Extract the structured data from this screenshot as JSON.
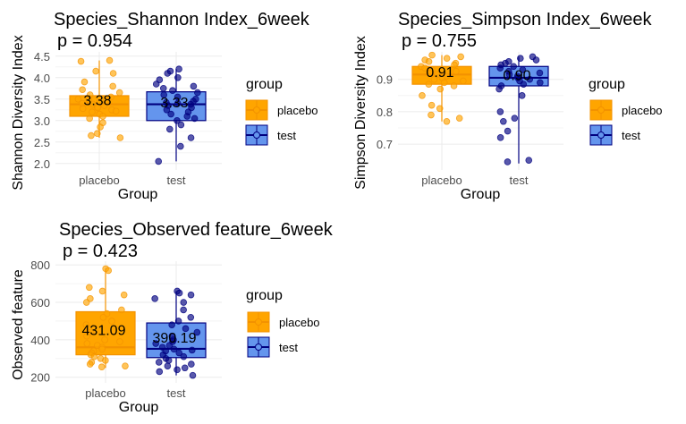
{
  "colors": {
    "placebo_fill": "#FFA500",
    "placebo_edge": "#F39200",
    "test_fill": "#6495ED",
    "test_edge": "#000080",
    "grid": "#ebebeb"
  },
  "legend": {
    "title": "group",
    "items": [
      "placebo",
      "test"
    ]
  },
  "chart_data": [
    {
      "type": "boxplot",
      "title": "Species_Shannon Index_6week",
      "subtitle": "p = 0.954",
      "xlabel": "Group",
      "ylabel": "Shannon Diversity Index",
      "categories": [
        "placebo",
        "test"
      ],
      "yticks": [
        2.0,
        2.5,
        3.0,
        3.5,
        4.0,
        4.5
      ],
      "ytick_labels": [
        "2.0",
        "2.5",
        "3.0",
        "3.5",
        "4.0",
        "4.5"
      ],
      "ylim": [
        1.85,
        4.6
      ],
      "boxes": [
        {
          "group": "placebo",
          "min": 2.6,
          "q1": 3.1,
          "median": 3.38,
          "q3": 3.58,
          "max": 4.4
        },
        {
          "group": "test",
          "min": 2.05,
          "q1": 3.0,
          "median": 3.38,
          "q3": 3.67,
          "max": 4.2
        }
      ],
      "means": [
        3.38,
        3.33
      ],
      "mean_labels": [
        "3.38",
        "3.33"
      ],
      "points": [
        [
          4.4,
          4.38,
          4.15,
          4.1,
          3.9,
          3.8,
          3.72,
          3.65,
          3.6,
          3.55,
          3.5,
          3.48,
          3.45,
          3.42,
          3.4,
          3.38,
          3.35,
          3.32,
          3.3,
          3.28,
          3.25,
          3.22,
          3.2,
          3.15,
          3.1,
          3.05,
          2.95,
          2.85,
          2.7,
          2.65,
          2.6
        ],
        [
          4.2,
          4.15,
          4.1,
          4.0,
          3.95,
          3.85,
          3.8,
          3.75,
          3.7,
          3.65,
          3.6,
          3.55,
          3.5,
          3.45,
          3.42,
          3.4,
          3.38,
          3.35,
          3.3,
          3.25,
          3.2,
          3.15,
          3.1,
          3.05,
          3.0,
          2.9,
          2.8,
          2.6,
          2.4,
          2.05
        ]
      ]
    },
    {
      "type": "boxplot",
      "title": "Species_Simpson Index_6week",
      "subtitle": "p = 0.755",
      "xlabel": "Group",
      "ylabel": "Simpson Diversity Index",
      "categories": [
        "placebo",
        "test"
      ],
      "yticks": [
        0.7,
        0.8,
        0.9
      ],
      "ytick_labels": [
        "0.7",
        "0.8",
        "0.9"
      ],
      "ylim": [
        0.62,
        0.985
      ],
      "boxes": [
        {
          "group": "placebo",
          "min": 0.77,
          "q1": 0.885,
          "median": 0.915,
          "q3": 0.94,
          "max": 0.975
        },
        {
          "group": "test",
          "min": 0.64,
          "q1": 0.88,
          "median": 0.905,
          "q3": 0.94,
          "max": 0.97
        }
      ],
      "means": [
        0.91,
        0.9
      ],
      "mean_labels": [
        "0.91",
        "0.90"
      ],
      "points": [
        [
          0.975,
          0.97,
          0.965,
          0.96,
          0.955,
          0.95,
          0.945,
          0.94,
          0.935,
          0.93,
          0.925,
          0.92,
          0.915,
          0.91,
          0.905,
          0.9,
          0.895,
          0.89,
          0.885,
          0.88,
          0.87,
          0.85,
          0.82,
          0.81,
          0.79,
          0.78,
          0.77
        ],
        [
          0.97,
          0.965,
          0.96,
          0.955,
          0.95,
          0.945,
          0.94,
          0.935,
          0.93,
          0.925,
          0.92,
          0.915,
          0.91,
          0.905,
          0.9,
          0.895,
          0.89,
          0.885,
          0.88,
          0.87,
          0.85,
          0.8,
          0.78,
          0.77,
          0.74,
          0.72,
          0.65,
          0.645
        ]
      ]
    },
    {
      "type": "boxplot",
      "title": "Species_Observed feature_6week",
      "subtitle": "p = 0.423",
      "xlabel": "Group",
      "ylabel": "Observed feature",
      "categories": [
        "placebo",
        "test"
      ],
      "yticks": [
        200,
        400,
        600,
        800
      ],
      "ytick_labels": [
        "200",
        "400",
        "600",
        "800"
      ],
      "ylim": [
        170,
        820
      ],
      "boxes": [
        {
          "group": "placebo",
          "min": 250,
          "q1": 320,
          "median": 360,
          "q3": 550,
          "max": 780
        },
        {
          "group": "test",
          "min": 210,
          "q1": 305,
          "median": 352,
          "q3": 490,
          "max": 660
        }
      ],
      "means": [
        431.09,
        390.19
      ],
      "mean_labels": [
        "431.09",
        "390.19"
      ],
      "points": [
        [
          780,
          770,
          680,
          660,
          640,
          620,
          600,
          560,
          540,
          520,
          500,
          480,
          460,
          440,
          420,
          400,
          390,
          380,
          370,
          360,
          350,
          340,
          330,
          320,
          310,
          300,
          290,
          280,
          270,
          260,
          255
        ],
        [
          660,
          650,
          640,
          620,
          600,
          560,
          520,
          500,
          480,
          460,
          440,
          420,
          400,
          390,
          380,
          370,
          360,
          350,
          345,
          340,
          330,
          320,
          310,
          300,
          290,
          280,
          270,
          260,
          250,
          240,
          230,
          210
        ]
      ]
    }
  ]
}
